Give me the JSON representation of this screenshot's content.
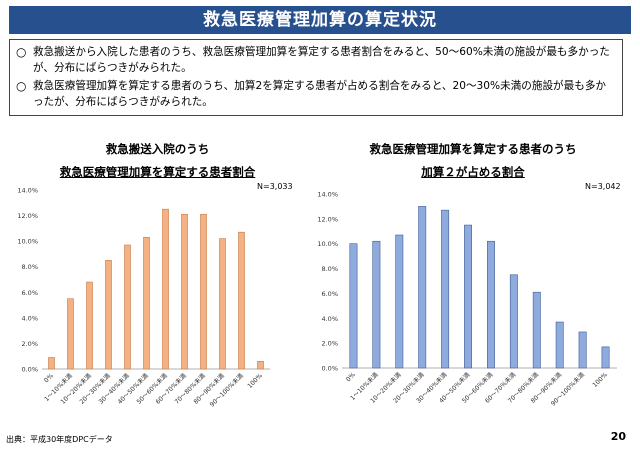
{
  "header": {
    "title": "救急医療管理加算の算定状況"
  },
  "summary": {
    "bullet_mark": "○",
    "points": [
      "救急搬送から入院した患者のうち、救急医療管理加算を算定する患者割合をみると、50〜60%未満の施設が最も多かったが、分布にばらつきがみられた。",
      "救急医療管理加算を算定する患者のうち、加算2を算定する患者が占める割合をみると、20〜30%未満の施設が最も多かったが、分布にばらつきがみられた。"
    ]
  },
  "charts": {
    "left": {
      "title_line1": "救急搬送入院のうち",
      "title_line2": "救急医療管理加算を算定する患者割合",
      "n": "N=3,033"
    },
    "right": {
      "title_line1": "救急医療管理加算を算定する患者のうち",
      "title_line2": "加算２が占める割合",
      "n": "N=3,042"
    }
  },
  "footer": {
    "source": "出典：平成30年度DPCデータ",
    "page": "20"
  },
  "colors": {
    "header_bg": "#27508e",
    "left_bar": "#f4b183",
    "left_bar_edge": "#c5804d",
    "right_bar": "#8faadc",
    "right_bar_edge": "#3f5f96"
  },
  "chart_data": [
    {
      "type": "bar",
      "title": "救急搬送入院のうち 救急医療管理加算を算定する患者割合",
      "categories": [
        "0%",
        "1〜10%未満",
        "10〜20%未満",
        "20〜30%未満",
        "30〜40%未満",
        "40〜50%未満",
        "50〜60%未満",
        "60〜70%未満",
        "70〜80%未満",
        "80〜90%未満",
        "90〜100%未満",
        "100%"
      ],
      "values": [
        0.9,
        5.5,
        6.8,
        8.5,
        9.7,
        10.3,
        12.5,
        12.1,
        12.1,
        10.2,
        10.7,
        0.6
      ],
      "ylim": [
        0,
        14
      ],
      "yticks": [
        "0.0%",
        "2.0%",
        "4.0%",
        "6.0%",
        "8.0%",
        "10.0%",
        "12.0%",
        "14.0%"
      ],
      "grid": false
    },
    {
      "type": "bar",
      "title": "救急医療管理加算を算定する患者のうち 加算２が占める割合",
      "categories": [
        "0%",
        "1〜10%未満",
        "10〜20%未満",
        "20〜30%未満",
        "30〜40%未満",
        "40〜50%未満",
        "50〜60%未満",
        "60〜70%未満",
        "70〜80%未満",
        "80〜90%未満",
        "90〜100%未満",
        "100%"
      ],
      "values": [
        10.0,
        10.2,
        10.7,
        13.0,
        12.7,
        11.5,
        10.2,
        7.5,
        6.1,
        3.7,
        2.9,
        1.7
      ],
      "ylim": [
        0,
        14
      ],
      "yticks": [
        "0.0%",
        "2.0%",
        "4.0%",
        "6.0%",
        "8.0%",
        "10.0%",
        "12.0%",
        "14.0%"
      ],
      "grid": false
    }
  ]
}
